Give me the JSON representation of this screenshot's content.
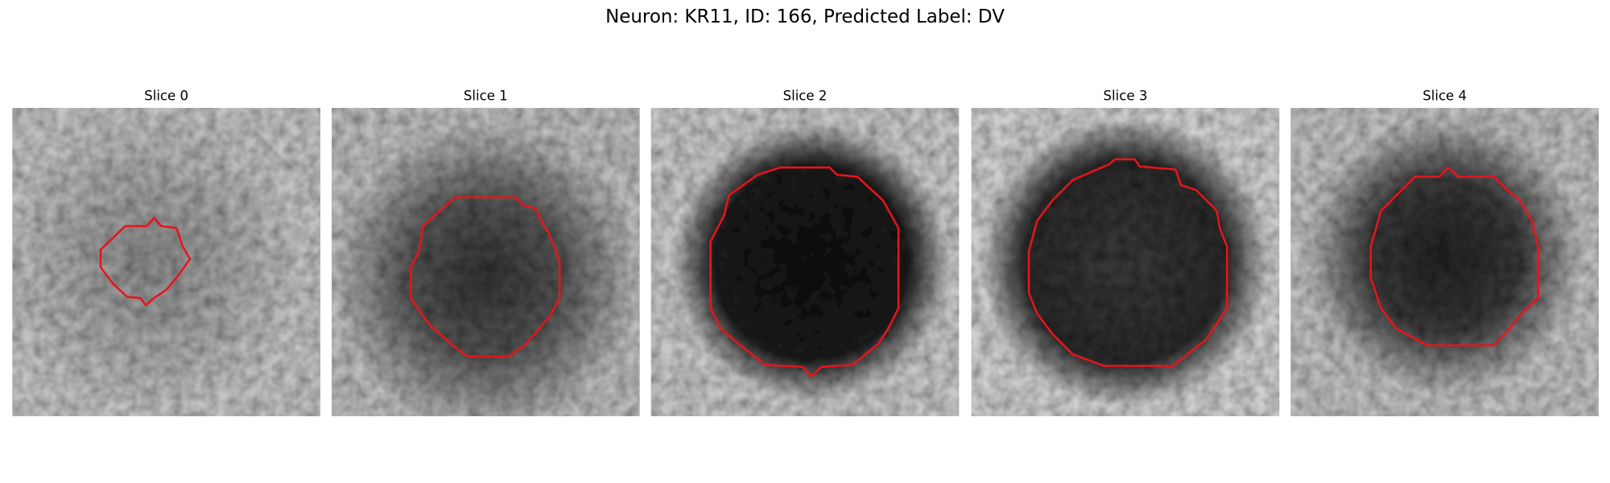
{
  "title": "Neuron: KR11, ID: 166, Predicted Label: DV",
  "panels": [
    {
      "title": "Slice 0"
    },
    {
      "title": "Slice 1"
    },
    {
      "title": "Slice 2"
    },
    {
      "title": "Slice 3"
    },
    {
      "title": "Slice 4"
    }
  ]
}
